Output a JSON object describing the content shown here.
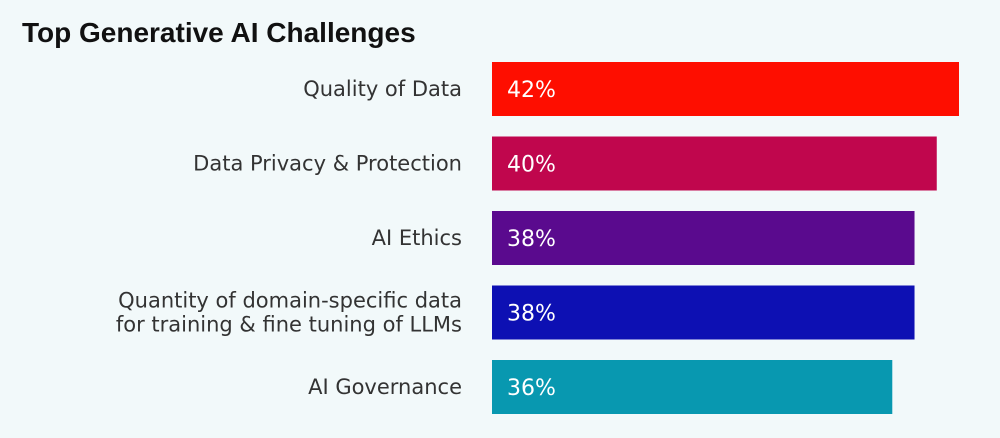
{
  "chart_data": {
    "type": "bar",
    "orientation": "horizontal",
    "title": "Top Generative AI Challenges",
    "categories": [
      [
        "Quality of Data"
      ],
      [
        "Data Privacy & Protection"
      ],
      [
        "AI Ethics"
      ],
      [
        "Quantity of domain-specific data",
        "for training & fine tuning of LLMs"
      ],
      [
        "AI Governance"
      ]
    ],
    "values": [
      42,
      40,
      38,
      38,
      36
    ],
    "value_labels": [
      "42%",
      "40%",
      "38%",
      "38%",
      "36%"
    ],
    "colors": [
      "#fe0e00",
      "#c0064d",
      "#5a0a8e",
      "#0d10b3",
      "#0898b0"
    ],
    "unit": "%",
    "grid": false,
    "legend": "none"
  }
}
